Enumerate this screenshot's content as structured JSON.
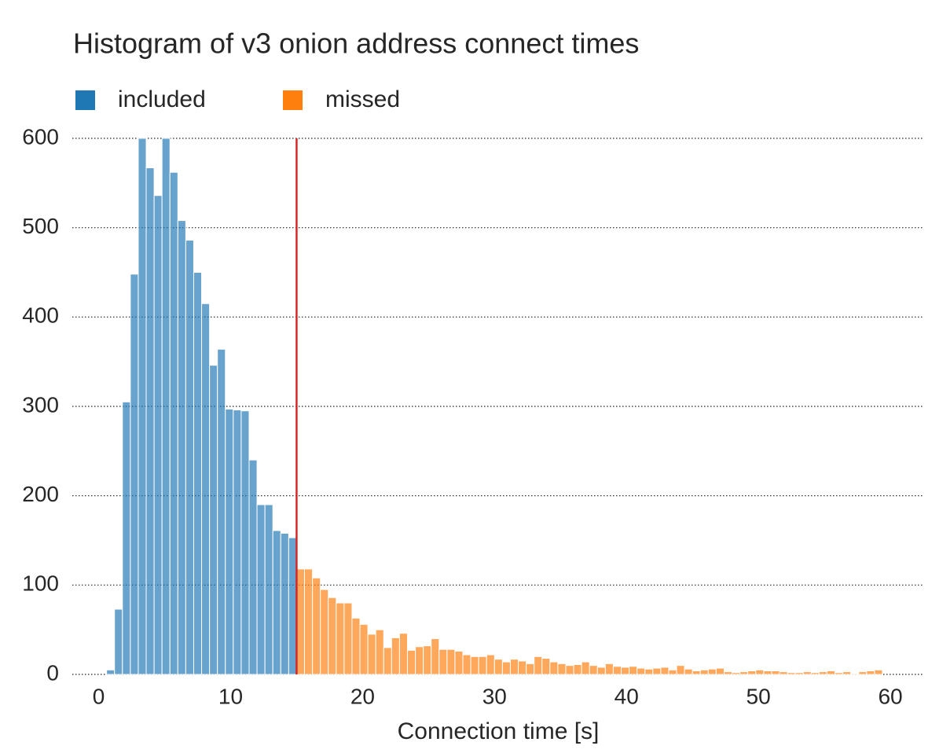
{
  "chart_data": {
    "type": "histogram",
    "title": "Histogram of v3 onion address connect times",
    "x_label": "Connection time [s]",
    "series": [
      {
        "name": "included",
        "color": "#1f77b4",
        "bins": [
          0.6,
          1.2,
          1.8,
          2.4,
          3,
          3.6,
          4.2,
          4.8,
          5.4,
          6,
          6.6,
          7.2,
          7.8,
          8.4,
          9,
          9.6,
          10.2,
          10.8,
          11.4,
          12,
          12.6,
          13.2,
          13.8,
          14.4,
          15
        ],
        "values": [
          5,
          73,
          305,
          448,
          600,
          567,
          536,
          600,
          562,
          508,
          486,
          450,
          415,
          346,
          364,
          297,
          296,
          295,
          240,
          190,
          190,
          161,
          158,
          153
        ]
      },
      {
        "name": "missed",
        "color": "#ff7f0e",
        "bins": [
          15,
          15.6,
          16.2,
          16.8,
          17.4,
          18,
          18.6,
          19.2,
          19.8,
          20.4,
          21,
          21.6,
          22.2,
          22.8,
          23.4,
          24,
          24.6,
          25.2,
          25.8,
          26.4,
          27,
          27.6,
          28.2,
          28.8,
          29.4,
          30,
          30.6,
          31.2,
          31.8,
          32.4,
          33,
          33.6,
          34.2,
          34.8,
          35.4,
          36,
          36.6,
          37.2,
          37.8,
          38.4,
          39,
          39.6,
          40.2,
          40.8,
          41.4,
          42,
          42.6,
          43.2,
          43.8,
          44.4,
          45,
          45.6,
          46.2,
          46.8,
          47.4,
          48,
          48.6,
          49.2,
          49.8,
          50.4,
          51,
          51.6,
          52.2,
          52.8,
          53.4,
          54,
          54.6,
          55.2,
          55.8,
          56.4,
          57,
          57.6,
          58.2,
          58.8,
          59.4
        ],
        "values": [
          118,
          118,
          108,
          95,
          86,
          80,
          80,
          63,
          56,
          45,
          50,
          30,
          41,
          46,
          27,
          31,
          32,
          40,
          28,
          28,
          26,
          22,
          20,
          20,
          22,
          17,
          14,
          17,
          15,
          12,
          20,
          18,
          14,
          12,
          10,
          11,
          14,
          10,
          8,
          12,
          9,
          8,
          9,
          7,
          6,
          7,
          8,
          5,
          10,
          6,
          4,
          5,
          6,
          7,
          3,
          2,
          3,
          4,
          5,
          4,
          4,
          3,
          2,
          2,
          3,
          2,
          3,
          4,
          2,
          3,
          1,
          3,
          4,
          5
        ]
      }
    ],
    "vline": {
      "value": 15,
      "color": "#d62728"
    },
    "xlim": [
      -2,
      62.5
    ],
    "xticks": [
      0,
      10,
      20,
      30,
      40,
      50,
      60
    ],
    "ylim": [
      0,
      600
    ],
    "yticks": [
      0,
      100,
      200,
      300,
      400,
      500,
      600
    ],
    "grid": true,
    "legend": "top-left"
  }
}
